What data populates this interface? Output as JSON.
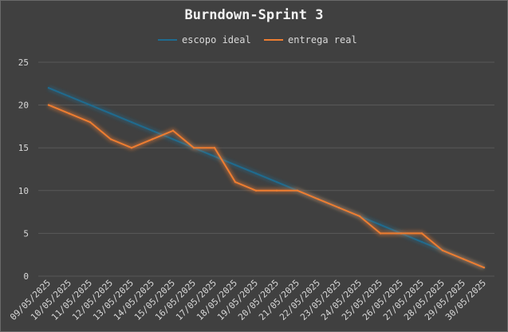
{
  "chart_data": {
    "type": "line",
    "title": "Burndown-Sprint 3",
    "xlabel": "",
    "ylabel": "",
    "ylim": [
      0,
      25
    ],
    "yticks": [
      0,
      5,
      10,
      15,
      20,
      25
    ],
    "grid": true,
    "legend_position": "top",
    "categories": [
      "09/05/2025",
      "10/05/2025",
      "11/05/2025",
      "12/05/2025",
      "13/05/2025",
      "14/05/2025",
      "15/05/2025",
      "16/05/2025",
      "17/05/2025",
      "18/05/2025",
      "19/05/2025",
      "20/05/2025",
      "21/05/2025",
      "22/05/2025",
      "23/05/2025",
      "24/05/2025",
      "25/05/2025",
      "26/05/2025",
      "27/05/2025",
      "28/05/2025",
      "29/05/2025",
      "30/05/2025"
    ],
    "series": [
      {
        "name": "escopo ideal",
        "color": "#1f6b8f",
        "values": [
          22,
          21,
          20,
          19,
          18,
          17,
          16,
          15,
          14,
          13,
          12,
          11,
          10,
          9,
          8,
          7,
          6,
          5,
          4,
          3,
          2,
          1
        ]
      },
      {
        "name": "entrega real",
        "color": "#ed7d31",
        "values": [
          20,
          19,
          18,
          16,
          15,
          16,
          17,
          15,
          15,
          11,
          10,
          10,
          10,
          9,
          8,
          7,
          5,
          5,
          5,
          3,
          2,
          1
        ]
      }
    ]
  }
}
